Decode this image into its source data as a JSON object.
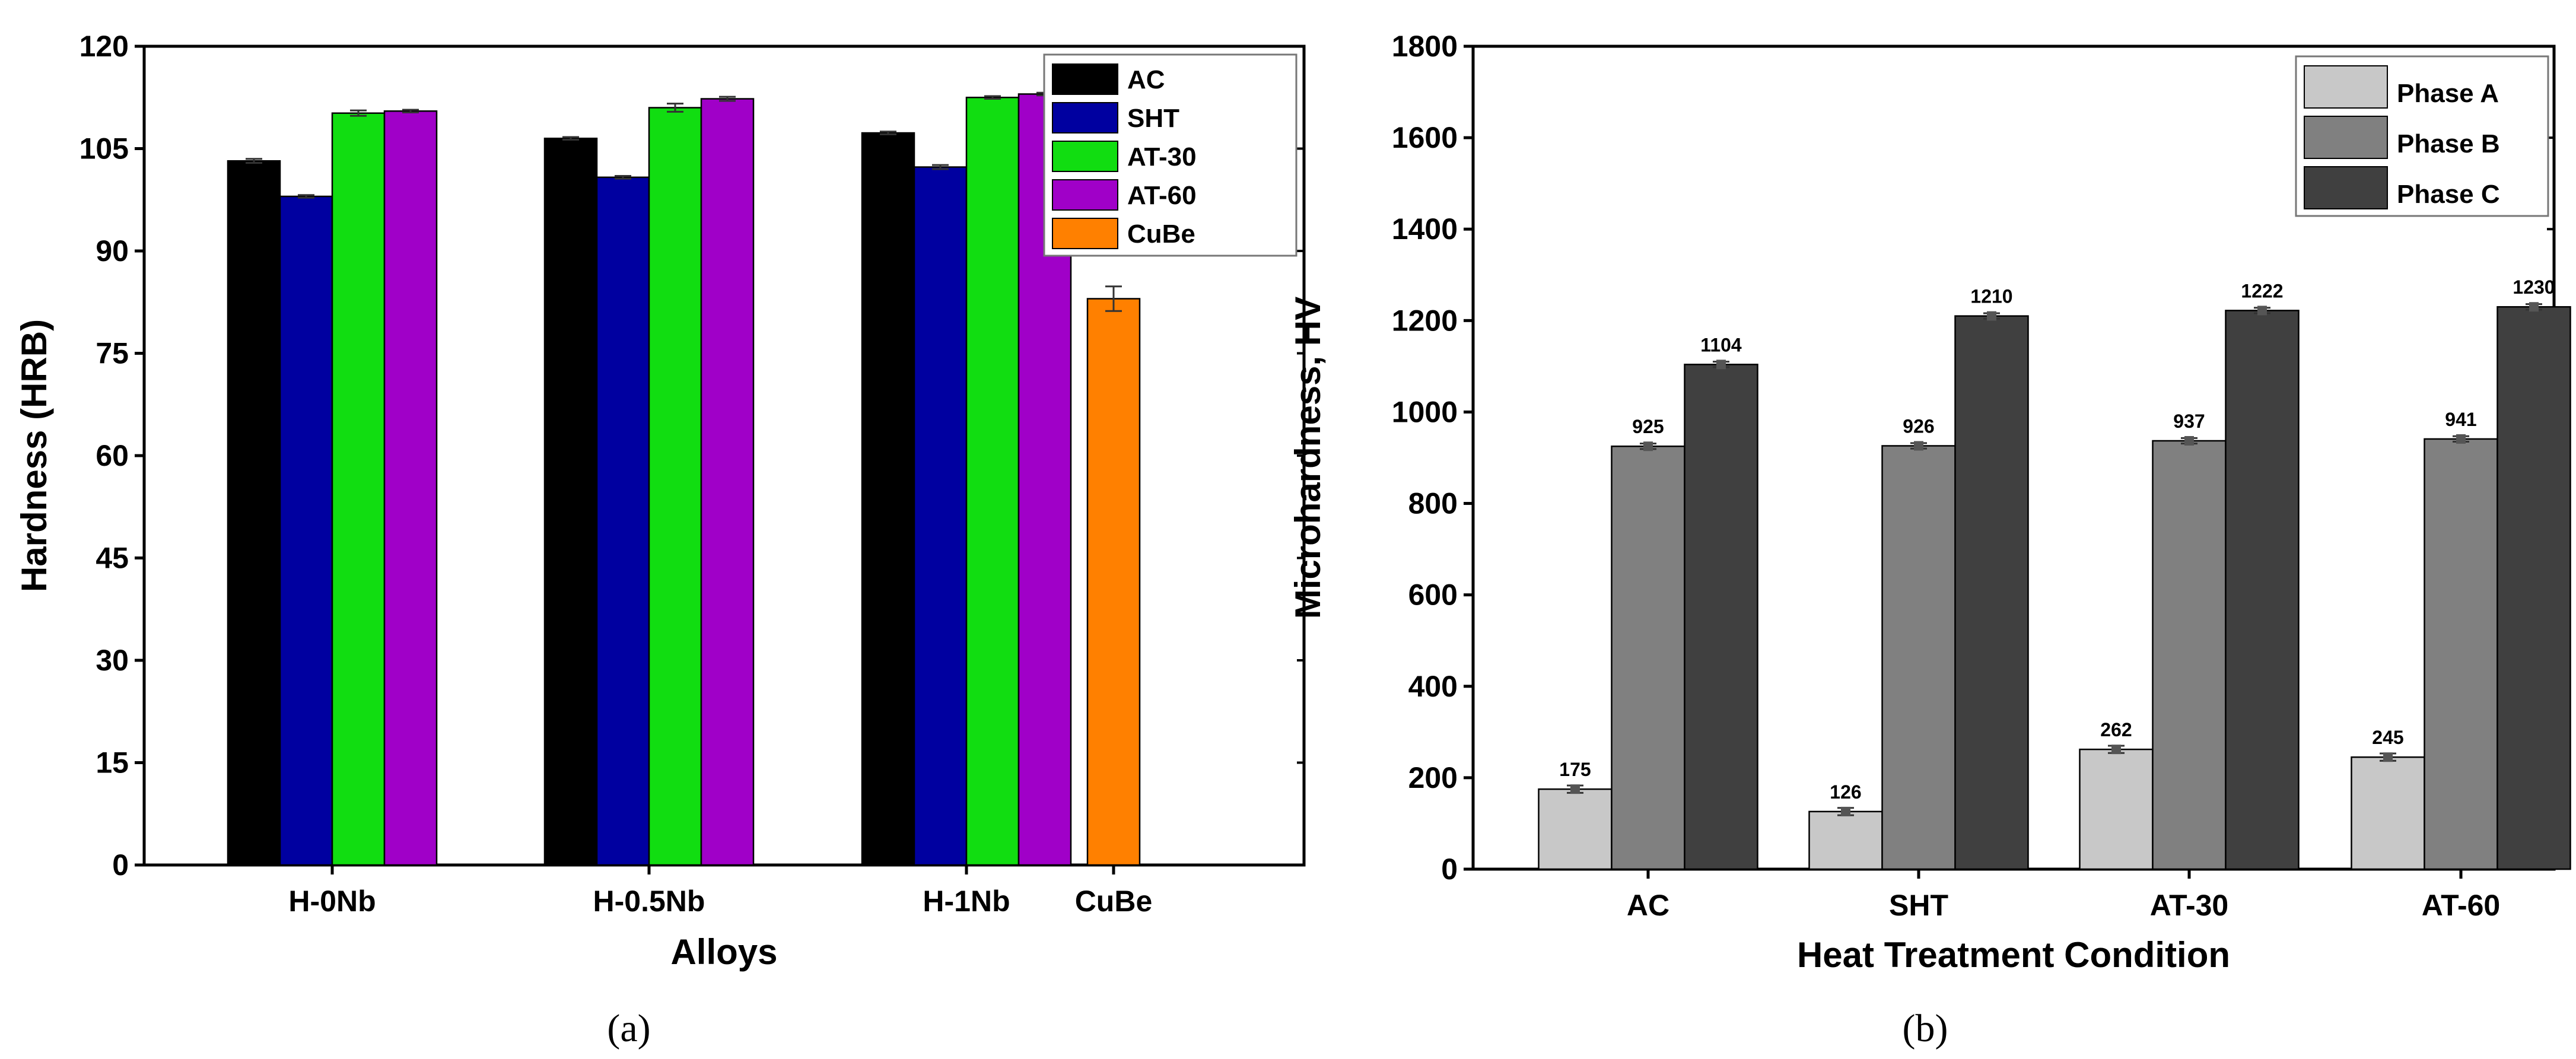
{
  "chart_data": [
    {
      "type": "bar",
      "caption": "(a)",
      "xlabel": "Alloys",
      "ylabel": "Hardness (HRB)",
      "ylim": [
        0,
        120
      ],
      "yticks": [
        0,
        15,
        30,
        45,
        60,
        75,
        90,
        105,
        120
      ],
      "categories": [
        "H-0Nb",
        "H-0.5Nb",
        "H-1Nb",
        "CuBe"
      ],
      "legend_position": "top-right",
      "series": [
        {
          "name": "AC",
          "color": "#000000",
          "values": [
            103.2,
            106.5,
            107.3,
            null
          ],
          "errors": [
            0.3,
            0.2,
            0.2,
            null
          ]
        },
        {
          "name": "SHT",
          "color": "#0000a0",
          "values": [
            98.0,
            100.8,
            102.3,
            null
          ],
          "errors": [
            0.2,
            0.2,
            0.3,
            null
          ]
        },
        {
          "name": "AT-30",
          "color": "#11dd11",
          "values": [
            110.2,
            111.0,
            112.5,
            null
          ],
          "errors": [
            0.4,
            0.6,
            0.2,
            null
          ]
        },
        {
          "name": "AT-60",
          "color": "#a000c8",
          "values": [
            110.5,
            112.3,
            113.0,
            null
          ],
          "errors": [
            0.2,
            0.3,
            0.2,
            null
          ]
        },
        {
          "name": "CuBe",
          "color": "#ff8000",
          "values": [
            null,
            null,
            null,
            83.0
          ],
          "errors": [
            null,
            null,
            null,
            1.8
          ]
        }
      ]
    },
    {
      "type": "bar",
      "caption": "(b)",
      "xlabel": "Heat Treatment Condition",
      "ylabel": "Microhardness, HV",
      "ylim": [
        0,
        1800
      ],
      "yticks": [
        0,
        200,
        400,
        600,
        800,
        1000,
        1200,
        1400,
        1600,
        1800
      ],
      "categories": [
        "AC",
        "SHT",
        "AT-30",
        "AT-60"
      ],
      "legend_position": "top-right",
      "series": [
        {
          "name": "Phase A",
          "color": "#c8c8c8",
          "values": [
            175,
            126,
            262,
            245
          ],
          "errors": [
            8,
            8,
            8,
            8
          ]
        },
        {
          "name": "Phase B",
          "color": "#808080",
          "values": [
            925,
            926,
            937,
            941
          ],
          "errors": [
            6,
            6,
            6,
            6
          ]
        },
        {
          "name": "Phase C",
          "color": "#404040",
          "values": [
            1104,
            1210,
            1222,
            1230
          ],
          "errors": [
            6,
            6,
            6,
            6
          ]
        }
      ],
      "data_labels": [
        [
          "175",
          "126",
          "262",
          "245"
        ],
        [
          "925",
          "926",
          "937",
          "941"
        ],
        [
          "1104",
          "1210",
          "1222",
          "1230"
        ]
      ]
    }
  ]
}
